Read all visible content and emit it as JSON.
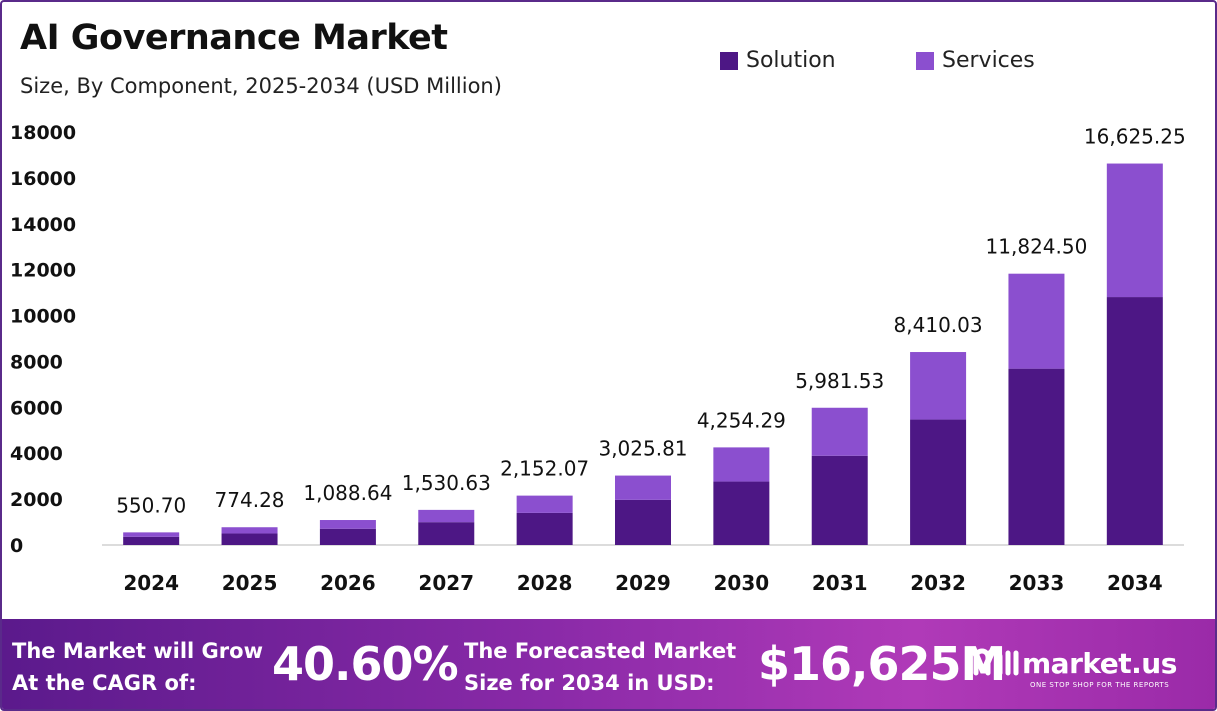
{
  "header": {
    "title": "AI Governance Market",
    "subtitle": "Size, By Component, 2025-2034 (USD Million)"
  },
  "legend": [
    {
      "label": "Solution",
      "color": "#4d1785"
    },
    {
      "label": "Services",
      "color": "#8b4fcf"
    }
  ],
  "chart_data": {
    "type": "bar",
    "stacked": true,
    "categories": [
      "2024",
      "2025",
      "2026",
      "2027",
      "2028",
      "2029",
      "2030",
      "2031",
      "2032",
      "2033",
      "2034"
    ],
    "series": [
      {
        "name": "Solution",
        "color": "#4d1785",
        "values": [
          358,
          503,
          708,
          995,
          1399,
          1967,
          2765,
          3888,
          5467,
          7686,
          10806
        ]
      },
      {
        "name": "Services",
        "color": "#8b4fcf",
        "values": [
          192.7,
          271.28,
          380.64,
          535.63,
          753.07,
          1058.81,
          1489.29,
          2093.53,
          2943.03,
          4138.5,
          5819.25
        ]
      }
    ],
    "totals": [
      550.7,
      774.28,
      1088.64,
      1530.63,
      2152.07,
      3025.81,
      4254.29,
      5981.53,
      8410.03,
      11824.5,
      16625.25
    ],
    "total_labels": [
      "550.70",
      "774.28",
      "1,088.64",
      "1,530.63",
      "2,152.07",
      "3,025.81",
      "4,254.29",
      "5,981.53",
      "8,410.03",
      "11,824.50",
      "16,625.25"
    ],
    "yticks": [
      0,
      2000,
      4000,
      6000,
      8000,
      10000,
      12000,
      14000,
      16000,
      18000
    ],
    "ylim": [
      0,
      18000
    ],
    "xlabel": "",
    "ylabel": "",
    "grid": false,
    "legend_position": "top-right"
  },
  "footer": {
    "cagr_label_line1": "The Market will Grow",
    "cagr_label_line2": "At the CAGR of:",
    "cagr_value": "40.60%",
    "forecast_label_line1": "The Forecasted Market",
    "forecast_label_line2": "Size for 2034 in USD:",
    "forecast_value": "$16,625M",
    "brand_name": "market.us",
    "brand_tagline": "ONE STOP SHOP FOR THE REPORTS"
  }
}
